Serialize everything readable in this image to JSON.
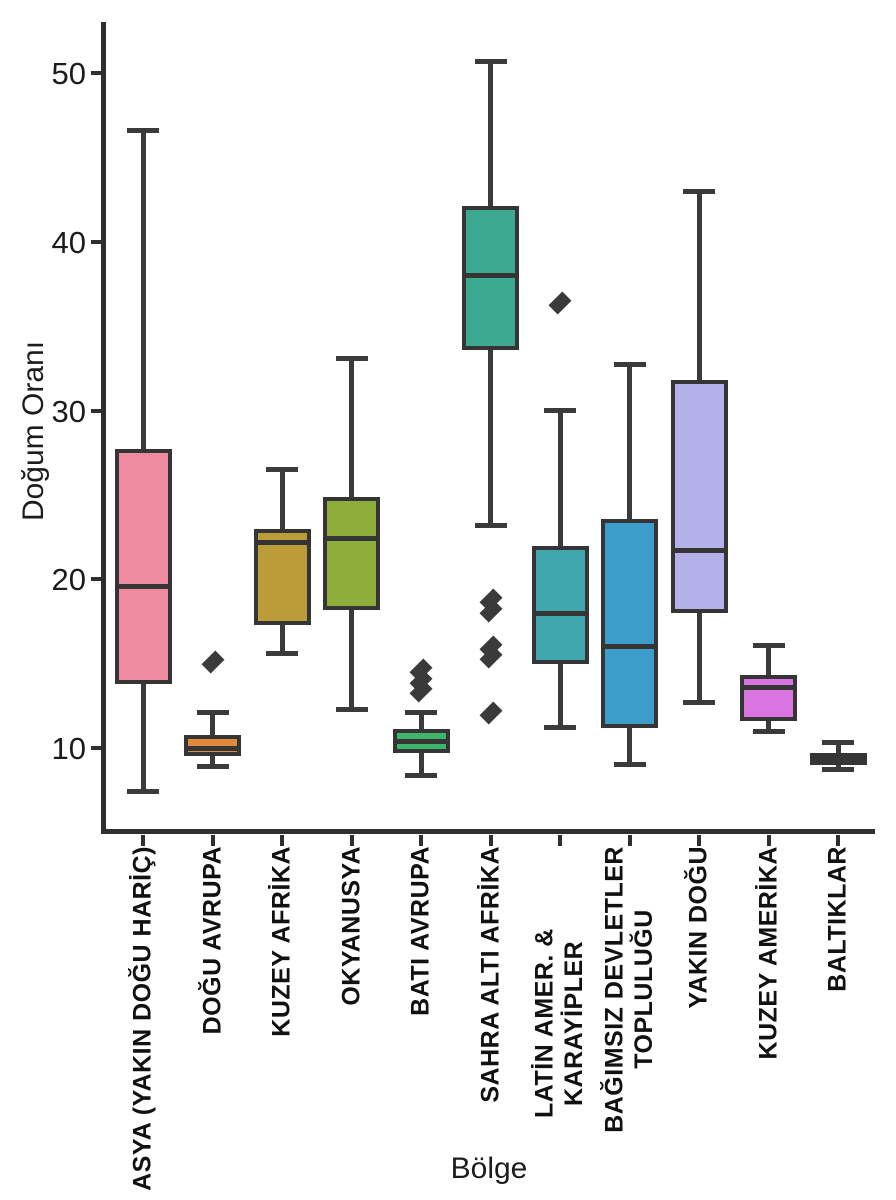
{
  "chart": {
    "ylabel": "Doğum Oranı",
    "xlabel": "Bölge"
  },
  "chart_data": {
    "type": "box",
    "title": "",
    "xlabel": "Bölge",
    "ylabel": "Doğum Oranı",
    "ylim": [
      5,
      53
    ],
    "yticks": [
      10,
      20,
      30,
      40,
      50
    ],
    "grid": false,
    "legend": false,
    "edge_color": "#353535",
    "categories": [
      "ASYA (YAKIN DOĞU HARİÇ)",
      "DOĞU AVRUPA",
      "KUZEY AFRİKA",
      "OKYANUSYA",
      "BATI AVRUPA",
      "SAHRA ALTI AFRİKA",
      "LATİN AMER. & KARAYİPLER",
      "BAĞIMSIZ DEVLETLER TOPLULUĞU",
      "YAKIN DOĞU",
      "KUZEY AMERİKA",
      "BALTIKLAR"
    ],
    "boxes": [
      {
        "label": "ASYA (YAKIN DOĞU HARİÇ)",
        "color": "#ef8ba1",
        "whisker_low": 7.4,
        "q1": 13.8,
        "median": 19.6,
        "q3": 27.7,
        "whisker_high": 46.6,
        "outliers": []
      },
      {
        "label": "DOĞU AVRUPA",
        "color": "#e1893c",
        "whisker_low": 8.9,
        "q1": 9.5,
        "median": 10.0,
        "q3": 10.8,
        "whisker_high": 12.1,
        "outliers": [
          15.1
        ]
      },
      {
        "label": "KUZEY AFRİKA",
        "color": "#bb9c39",
        "whisker_low": 15.6,
        "q1": 17.3,
        "median": 22.2,
        "q3": 23.0,
        "whisker_high": 26.5,
        "outliers": []
      },
      {
        "label": "OKYANUSYA",
        "color": "#8fad3a",
        "whisker_low": 12.3,
        "q1": 18.2,
        "median": 22.4,
        "q3": 24.9,
        "whisker_high": 33.1,
        "outliers": []
      },
      {
        "label": "BATI AVRUPA",
        "color": "#3db56a",
        "whisker_low": 8.4,
        "q1": 9.7,
        "median": 10.4,
        "q3": 11.1,
        "whisker_high": 12.1,
        "outliers": [
          14.6,
          14.0,
          13.4
        ]
      },
      {
        "label": "SAHRA ALTI AFRİKA",
        "color": "#3caa90",
        "whisker_low": 23.2,
        "q1": 33.6,
        "median": 38.0,
        "q3": 42.1,
        "whisker_high": 50.7,
        "outliers": [
          18.8,
          18.1,
          16.0,
          15.4,
          12.1
        ]
      },
      {
        "label": "LATİN AMER. & KARAYİPLER",
        "color": "#3fa7ad",
        "whisker_low": 11.2,
        "q1": 15.0,
        "median": 18.0,
        "q3": 22.0,
        "whisker_high": 30.0,
        "outliers": [
          36.4
        ]
      },
      {
        "label": "BAĞIMSIZ DEVLETLER\nTOPLULUĞU",
        "color": "#3e9ecb",
        "whisker_low": 9.0,
        "q1": 11.2,
        "median": 16.0,
        "q3": 23.6,
        "whisker_high": 32.7,
        "outliers": []
      },
      {
        "label": "YAKIN DOĞU",
        "color": "#b4b0ea",
        "whisker_low": 12.7,
        "q1": 18.0,
        "median": 21.7,
        "q3": 31.8,
        "whisker_high": 43.0,
        "outliers": []
      },
      {
        "label": "KUZEY AMERİKA",
        "color": "#da74e0",
        "whisker_low": 11.0,
        "q1": 11.6,
        "median": 13.6,
        "q3": 14.3,
        "whisker_high": 16.1,
        "outliers": []
      },
      {
        "label": "BALTIKLAR",
        "color": "#604457",
        "whisker_low": 8.7,
        "q1": 9.0,
        "median": 9.3,
        "q3": 9.7,
        "whisker_high": 10.3,
        "outliers": []
      }
    ]
  }
}
